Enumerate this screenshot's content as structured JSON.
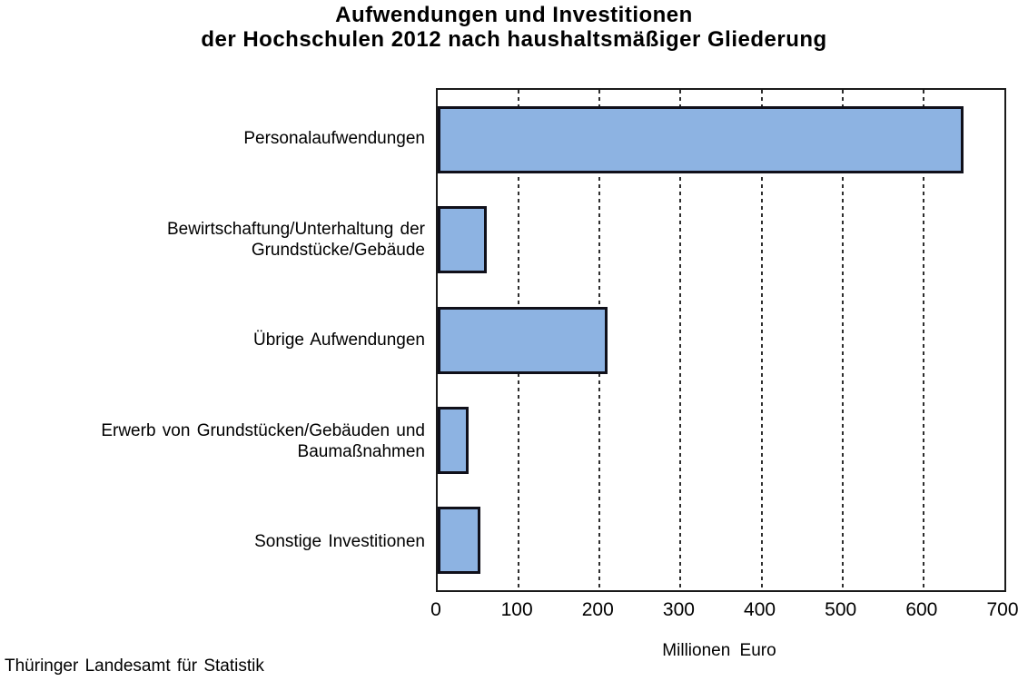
{
  "title": {
    "line1": "Aufwendungen und Investitionen",
    "line2": "der Hochschulen 2012 nach haushaltsmäßiger Gliederung"
  },
  "source": "Thüringer Landesamt für Statistik",
  "chart_data": {
    "type": "bar",
    "orientation": "horizontal",
    "title": "Aufwendungen und Investitionen der Hochschulen 2012 nach haushaltsmäßiger Gliederung",
    "categories": [
      "Personalaufwendungen",
      "Bewirtschaftung/Unterhaltung der Grundstücke/Gebäude",
      "Übrige Aufwendungen",
      "Erwerb von Grundstücken/Gebäuden und Baumaßnahmen",
      "Sonstige Investitionen"
    ],
    "category_label_lines": [
      [
        "Personalaufwendungen"
      ],
      [
        "Bewirtschaftung/Unterhaltung der",
        "Grundstücke/Gebäude"
      ],
      [
        "Übrige Aufwendungen"
      ],
      [
        "Erwerb von Grundstücken/Gebäuden und",
        "Baumaßnahmen"
      ],
      [
        "Sonstige Investitionen"
      ]
    ],
    "values": [
      650,
      61,
      210,
      38,
      53
    ],
    "xlabel": "Millionen Euro",
    "ylabel": "",
    "xlim": [
      0,
      700
    ],
    "xticks": [
      0,
      100,
      200,
      300,
      400,
      500,
      600,
      700
    ],
    "grid": "vertical-dashed",
    "legend": "none",
    "bar_color": "#8DB3E2",
    "bar_border_color": "#10101a",
    "axis_color": "#1a1a1a"
  }
}
